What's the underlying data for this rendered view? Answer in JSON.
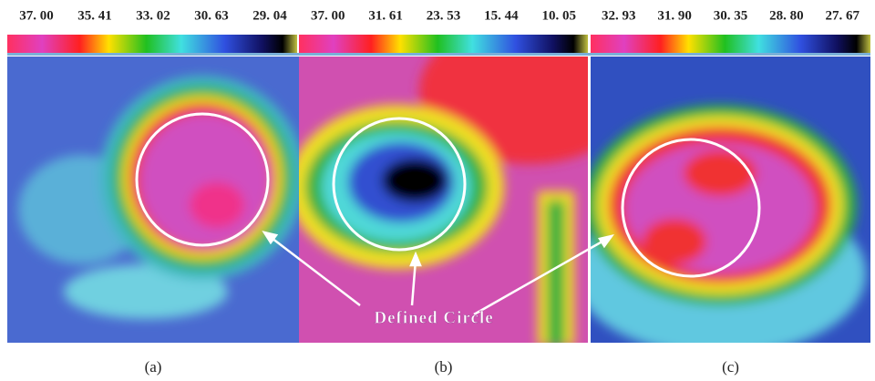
{
  "panels": [
    {
      "scale_labels": [
        "37. 00",
        "35. 41",
        "33. 02",
        "30. 63",
        "29. 04"
      ],
      "caption": "(a)"
    },
    {
      "scale_labels": [
        "37. 00",
        "31. 61",
        "23. 53",
        "15. 44",
        "10. 05"
      ],
      "caption": "(b)"
    },
    {
      "scale_labels": [
        "32. 93",
        "31. 90",
        "30. 35",
        "28. 80",
        "27. 67"
      ],
      "caption": "(c)"
    }
  ],
  "annotation": "Defined Circle"
}
